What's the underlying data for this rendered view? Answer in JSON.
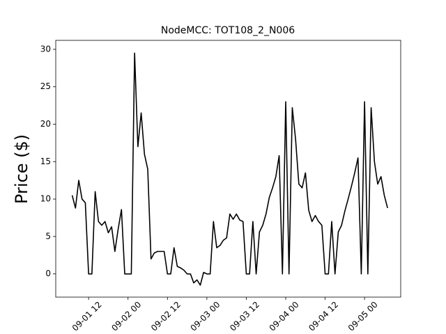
{
  "chart_data": {
    "type": "line",
    "title": "NodeMCC: TOT108_2_N006",
    "y_label": "Price ($)",
    "x": [
      "09-01 07",
      "09-01 08",
      "09-01 09",
      "09-01 10",
      "09-01 11",
      "09-01 12",
      "09-01 13",
      "09-01 14",
      "09-01 15",
      "09-01 16",
      "09-01 17",
      "09-01 18",
      "09-01 19",
      "09-01 20",
      "09-01 21",
      "09-01 22",
      "09-01 23",
      "09-02 00",
      "09-02 01",
      "09-02 02",
      "09-02 03",
      "09-02 04",
      "09-02 05",
      "09-02 06",
      "09-02 07",
      "09-02 08",
      "09-02 09",
      "09-02 10",
      "09-02 11",
      "09-02 12",
      "09-02 13",
      "09-02 14",
      "09-02 15",
      "09-02 16",
      "09-02 17",
      "09-02 18",
      "09-02 19",
      "09-02 20",
      "09-02 21",
      "09-02 22",
      "09-02 23",
      "09-03 00",
      "09-03 01",
      "09-03 02",
      "09-03 03",
      "09-03 04",
      "09-03 05",
      "09-03 06",
      "09-03 07",
      "09-03 08",
      "09-03 09",
      "09-03 10",
      "09-03 11",
      "09-03 12",
      "09-03 13",
      "09-03 14",
      "09-03 15",
      "09-03 16",
      "09-03 17",
      "09-03 18",
      "09-03 19",
      "09-03 20",
      "09-03 21",
      "09-03 22",
      "09-03 23",
      "09-04 00",
      "09-04 01",
      "09-04 02",
      "09-04 03",
      "09-04 04",
      "09-04 05",
      "09-04 06",
      "09-04 07",
      "09-04 08",
      "09-04 09",
      "09-04 10",
      "09-04 11",
      "09-04 12",
      "09-04 13",
      "09-04 14",
      "09-04 15",
      "09-04 16",
      "09-04 17",
      "09-04 18",
      "09-04 19",
      "09-04 20",
      "09-04 21",
      "09-04 22",
      "09-04 23",
      "09-05 00",
      "09-05 01",
      "09-05 02",
      "09-05 03",
      "09-05 04",
      "09-05 05",
      "09-05 06",
      "09-05 07"
    ],
    "series": [
      {
        "color": "#000000",
        "values": [
          10.5,
          8.8,
          12.5,
          10,
          9.5,
          0,
          0,
          11,
          7,
          6.5,
          7,
          5.5,
          6.3,
          3,
          6,
          8.6,
          0,
          0,
          0,
          29.5,
          17,
          21.5,
          16,
          14,
          2,
          2.8,
          3,
          3,
          3,
          0,
          0,
          3.5,
          1,
          0.8,
          0.5,
          0,
          0,
          -1.2,
          -0.8,
          -1.5,
          0.2,
          0,
          0,
          7,
          3.5,
          3.8,
          4.5,
          4.8,
          8,
          7.3,
          8,
          7.2,
          7,
          0,
          0,
          7,
          0,
          5.6,
          6.5,
          8,
          10.2,
          11.5,
          13,
          15.8,
          0,
          23,
          0,
          22.2,
          18,
          12,
          11.5,
          13.5,
          8.5,
          7,
          7.8,
          7,
          6.5,
          0,
          0,
          7,
          0,
          5.6,
          6.5,
          8.4,
          10,
          11.7,
          13.5,
          15.5,
          0,
          23,
          0,
          22.2,
          15,
          12,
          13,
          10.5,
          8.8
        ]
      }
    ],
    "xlim": [
      "09-01 02",
      "09-05 11"
    ],
    "xticks": [
      "09-01 12",
      "09-02 00",
      "09-02 12",
      "09-03 00",
      "09-03 12",
      "09-04 00",
      "09-04 12",
      "09-05 00"
    ],
    "ylim": [
      -3.1,
      31.2
    ],
    "yticks": [
      0,
      5,
      10,
      15,
      20,
      25,
      30
    ]
  }
}
